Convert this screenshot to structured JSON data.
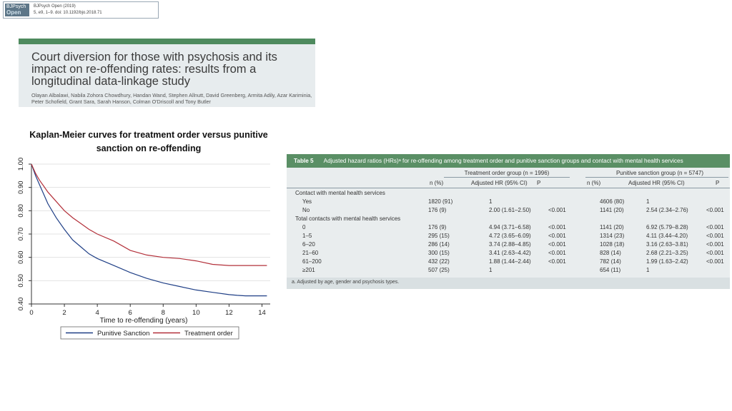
{
  "journal": {
    "logo_top": "BJPsych",
    "logo_bottom": "Open",
    "name": "BJPsych Open (2019)",
    "citation": "5, e9, 1–9. doi: 10.1192/bjo.2018.71"
  },
  "paper": {
    "title": "Court diversion for those with psychosis and its impact on re-offending rates: results from a longitudinal data-linkage study",
    "authors": "Olayan Albalawi, Nabila Zohora Chowdhury, Handan Wand, Stephen Allnutt, David Greenberg, Armita Adily, Azar Kariminia, Peter Schofield, Grant Sara, Sarah Hanson, Colman O'Driscoll and Tony Butler"
  },
  "chart_data": {
    "type": "line",
    "title": "Kaplan-Meier curves for treatment order versus punitive sanction on re-offending",
    "xlabel": "Time to re-offending (years)",
    "ylabel": "",
    "xlim": [
      0,
      14.5
    ],
    "ylim": [
      0.4,
      1.0
    ],
    "xticks": [
      "0",
      "2",
      "4",
      "6",
      "8",
      "10",
      "12",
      "14"
    ],
    "yticks": [
      "0.40",
      "0.50",
      "0.60",
      "0.70",
      "0.80",
      "0.90",
      "1.00"
    ],
    "grid": true,
    "legend_position": "bottom",
    "series": [
      {
        "name": "Punitive Sanction",
        "color": "#1f3f86",
        "x": [
          0,
          0.25,
          0.5,
          0.75,
          1,
          1.5,
          2,
          2.5,
          3,
          3.5,
          4,
          5,
          6,
          7,
          8,
          9,
          10,
          11,
          12,
          12.5,
          13,
          14.3
        ],
        "y": [
          1.0,
          0.95,
          0.91,
          0.87,
          0.83,
          0.77,
          0.72,
          0.675,
          0.645,
          0.615,
          0.595,
          0.565,
          0.535,
          0.51,
          0.49,
          0.475,
          0.46,
          0.45,
          0.44,
          0.437,
          0.435,
          0.435
        ]
      },
      {
        "name": "Treatment order",
        "color": "#b3303a",
        "x": [
          0,
          0.25,
          0.5,
          0.75,
          1,
          1.5,
          2,
          2.5,
          3,
          3.5,
          4,
          5,
          6,
          7,
          8,
          9,
          10,
          11,
          12,
          13,
          14.3
        ],
        "y": [
          1.0,
          0.96,
          0.93,
          0.905,
          0.88,
          0.84,
          0.8,
          0.77,
          0.745,
          0.72,
          0.7,
          0.67,
          0.63,
          0.61,
          0.6,
          0.595,
          0.585,
          0.57,
          0.565,
          0.565,
          0.565
        ]
      }
    ]
  },
  "table": {
    "label": "Table 5",
    "caption": "Adjusted hazard ratios (HRs)ᵃ for re-offending among treatment order and punitive sanction groups and contact with mental health services",
    "group1": "Treatment order group (n = 1996)",
    "group2": "Punitive sanction group (n = 5747)",
    "col_n": "n (%)",
    "col_hr": "Adjusted HR (95% CI)",
    "col_p": "P",
    "rows": [
      {
        "label": "Contact with mental health services",
        "n1": "",
        "hr1": "",
        "p1": "",
        "n2": "",
        "hr2": "",
        "p2": ""
      },
      {
        "label": "Yes",
        "indent": true,
        "n1": "1820 (91)",
        "hr1": "1",
        "p1": "",
        "n2": "4606 (80)",
        "hr2": "1",
        "p2": ""
      },
      {
        "label": "No",
        "indent": true,
        "n1": "176 (9)",
        "hr1": "2.00 (1.61–2.50)",
        "p1": "<0.001",
        "n2": "1141 (20)",
        "hr2": "2.54 (2.34–2.76)",
        "p2": "<0.001"
      },
      {
        "label": "Total contacts with mental health services",
        "n1": "",
        "hr1": "",
        "p1": "",
        "n2": "",
        "hr2": "",
        "p2": ""
      },
      {
        "label": "0",
        "indent": true,
        "n1": "176 (9)",
        "hr1": "4.94 (3.71–6.58)",
        "p1": "<0.001",
        "n2": "1141 (20)",
        "hr2": "6.92 (5.79–8.28)",
        "p2": "<0.001"
      },
      {
        "label": "1–5",
        "indent": true,
        "n1": "295 (15)",
        "hr1": "4.72 (3.65–6.09)",
        "p1": "<0.001",
        "n2": "1314 (23)",
        "hr2": "4.11 (3.44–4.20)",
        "p2": "<0.001"
      },
      {
        "label": "6–20",
        "indent": true,
        "n1": "286 (14)",
        "hr1": "3.74 (2.88–4.85)",
        "p1": "<0.001",
        "n2": "1028 (18)",
        "hr2": "3.16 (2.63–3.81)",
        "p2": "<0.001"
      },
      {
        "label": "21–60",
        "indent": true,
        "n1": "300 (15)",
        "hr1": "3.41 (2.63–4.42)",
        "p1": "<0.001",
        "n2": "828 (14)",
        "hr2": "2.68 (2.21–3.25)",
        "p2": "<0.001"
      },
      {
        "label": "61–200",
        "indent": true,
        "n1": "432 (22)",
        "hr1": "1.88 (1.44–2.44)",
        "p1": "<0.001",
        "n2": "782 (14)",
        "hr2": "1.99 (1.63–2.42)",
        "p2": "<0.001"
      },
      {
        "label": "≥201",
        "indent": true,
        "n1": "507 (25)",
        "hr1": "1",
        "p1": "",
        "n2": "654 (11)",
        "hr2": "1",
        "p2": ""
      }
    ],
    "footnote": "a. Adjusted by age, gender and psychosis types."
  }
}
